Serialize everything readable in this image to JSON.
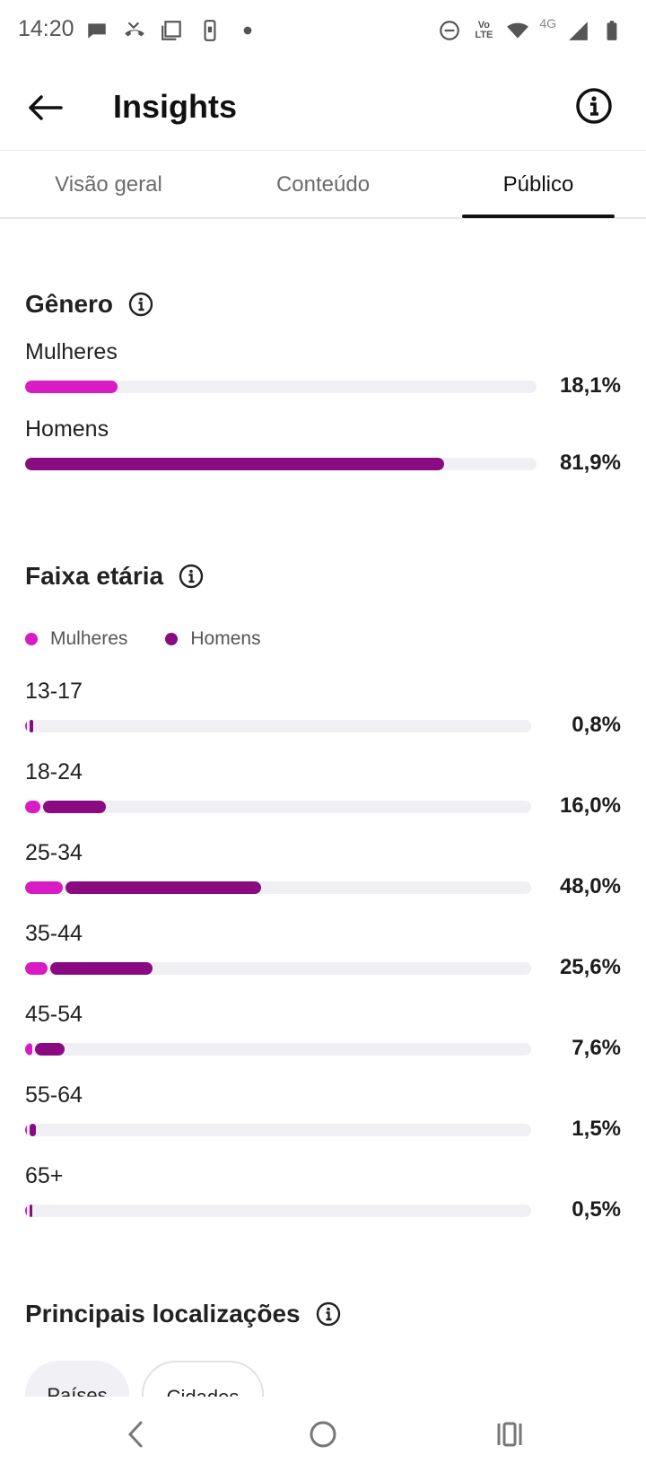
{
  "status_bar": {
    "time": "14:20",
    "left_icons": [
      "chat-icon",
      "missed-call-icon",
      "screenshot-icon",
      "phone-icon",
      "dot-icon"
    ],
    "right_icons": [
      "do-not-disturb-icon",
      "volte-icon",
      "wifi-icon",
      "signal-icon",
      "battery-icon"
    ],
    "volte_top": "Vo",
    "volte_bottom": "LTE",
    "network": "4G"
  },
  "app_bar": {
    "title": "Insights",
    "back_icon": "arrow-left-icon",
    "info_icon": "info-icon"
  },
  "tabs": [
    {
      "label": "Visão geral",
      "active": false
    },
    {
      "label": "Conteúdo",
      "active": false
    },
    {
      "label": "Público",
      "active": true
    }
  ],
  "colors": {
    "women": "#d81bc4",
    "men": "#8a0a82",
    "track": "#efeff4"
  },
  "gender": {
    "title": "Gênero",
    "rows": [
      {
        "label": "Mulheres",
        "percent_text": "18,1%",
        "value": 18.1
      },
      {
        "label": "Homens",
        "percent_text": "81,9%",
        "value": 81.9
      }
    ]
  },
  "age": {
    "title": "Faixa etária",
    "legend": {
      "women": "Mulheres",
      "men": "Homens"
    },
    "rows": [
      {
        "label": "13-17",
        "percent_text": "0,8%",
        "women": 0.1,
        "men": 0.7
      },
      {
        "label": "18-24",
        "percent_text": "16,0%",
        "women": 3.2,
        "men": 12.8
      },
      {
        "label": "25-34",
        "percent_text": "48,0%",
        "women": 7.7,
        "men": 40.3
      },
      {
        "label": "35-44",
        "percent_text": "25,6%",
        "women": 4.6,
        "men": 21.0
      },
      {
        "label": "45-54",
        "percent_text": "7,6%",
        "women": 1.4,
        "men": 6.2
      },
      {
        "label": "55-64",
        "percent_text": "1,5%",
        "women": 0.3,
        "men": 1.2
      },
      {
        "label": "65+",
        "percent_text": "0,5%",
        "women": 0.1,
        "men": 0.4
      }
    ]
  },
  "locations": {
    "title": "Principais localizações",
    "chips": [
      {
        "label": "Países",
        "selected": true
      },
      {
        "label": "Cidades",
        "selected": false
      }
    ]
  },
  "nav_bar": {
    "icons": [
      "back-nav-icon",
      "home-nav-icon",
      "recents-nav-icon"
    ]
  }
}
